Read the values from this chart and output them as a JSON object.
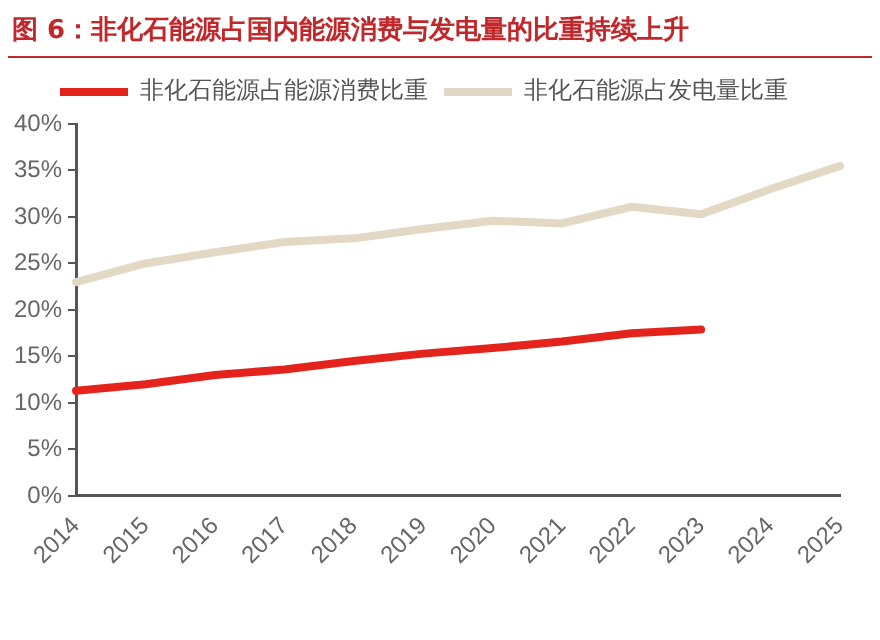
{
  "chart_data": {
    "type": "line",
    "title": "图 6：非化石能源占国内能源消费与发电量的比重持续上升",
    "categories": [
      "2014",
      "2015",
      "2016",
      "2017",
      "2018",
      "2019",
      "2020",
      "2021",
      "2022",
      "2023",
      "2024",
      "2025"
    ],
    "series": [
      {
        "name": "非化石能源占能源消费比重",
        "color": "#e5231d",
        "values": [
          11.3,
          12.0,
          13.0,
          13.6,
          14.5,
          15.3,
          15.9,
          16.6,
          17.5,
          17.9,
          null,
          null
        ]
      },
      {
        "name": "非化石能源占发电量比重",
        "color": "#e2d8c3",
        "values": [
          23.0,
          25.0,
          26.2,
          27.3,
          27.7,
          28.7,
          29.6,
          29.3,
          31.1,
          30.3,
          33.0,
          35.5
        ]
      }
    ],
    "ylim": [
      0,
      40
    ],
    "yticks": [
      {
        "value": 0,
        "label": "0%"
      },
      {
        "value": 5,
        "label": "5%"
      },
      {
        "value": 10,
        "label": "10%"
      },
      {
        "value": 15,
        "label": "15%"
      },
      {
        "value": 20,
        "label": "20%"
      },
      {
        "value": 25,
        "label": "25%"
      },
      {
        "value": 30,
        "label": "30%"
      },
      {
        "value": 35,
        "label": "35%"
      },
      {
        "value": 40,
        "label": "40%"
      }
    ],
    "grid": false,
    "legend": "top",
    "marker": "none",
    "line_style": "solid"
  }
}
